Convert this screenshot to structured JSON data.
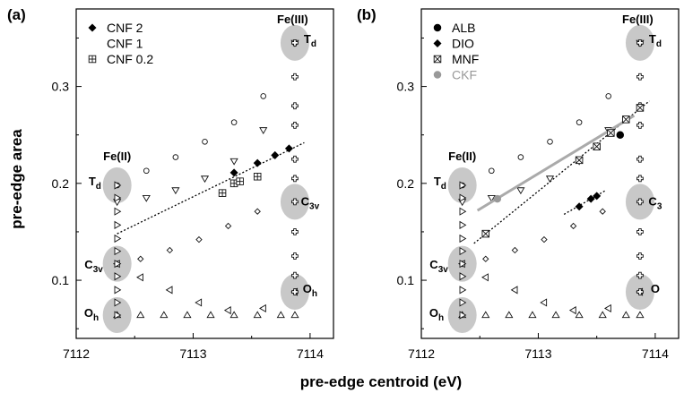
{
  "chart_data": [
    {
      "panel": "(a)",
      "type": "scatter",
      "xlim": [
        7112.0,
        7114.2
      ],
      "ylim": [
        0.04,
        0.38
      ],
      "xticks": [
        7112,
        7113,
        7114
      ],
      "yticks": [
        0.1,
        0.2,
        0.3
      ],
      "legend": [
        {
          "label": "CNF 2",
          "marker": "diamond-filled",
          "color": "#000000"
        },
        {
          "label": "CNF 1",
          "marker": "none",
          "color": "#000000"
        },
        {
          "label": "CNF 0.2",
          "marker": "square-plus",
          "color": "#000000"
        }
      ],
      "legend_position": "top-left",
      "site_labels": [
        {
          "text": "Fe(II)",
          "x": 7112.35,
          "y": 0.224
        },
        {
          "text": "Fe(III)",
          "x": 7113.85,
          "y": 0.365
        }
      ],
      "geometry_labels": [
        {
          "main": "T",
          "sub": "d",
          "x": 7112.16,
          "y": 0.198
        },
        {
          "main": "C",
          "sub": "3v",
          "x": 7112.15,
          "y": 0.112
        },
        {
          "main": "O",
          "sub": "h",
          "x": 7112.13,
          "y": 0.062
        },
        {
          "main": "T",
          "sub": "d",
          "x": 7114.0,
          "y": 0.345
        },
        {
          "main": "C",
          "sub": "3v",
          "x": 7114.0,
          "y": 0.177
        },
        {
          "main": "O",
          "sub": "h",
          "x": 7114.0,
          "y": 0.087
        }
      ],
      "ellipses": [
        {
          "x": 7112.35,
          "y": 0.198
        },
        {
          "x": 7112.35,
          "y": 0.117
        },
        {
          "x": 7112.35,
          "y": 0.064
        },
        {
          "x": 7113.87,
          "y": 0.345
        },
        {
          "x": 7113.87,
          "y": 0.181
        },
        {
          "x": 7113.87,
          "y": 0.088
        }
      ],
      "reference_series": [
        {
          "marker": "circle-open",
          "x": [
            7112.35,
            7112.6,
            7112.85,
            7113.1,
            7113.35,
            7113.6,
            7113.87
          ],
          "y": [
            0.198,
            0.213,
            0.227,
            0.243,
            0.263,
            0.29,
            0.345
          ]
        },
        {
          "marker": "triangle-down-open",
          "x": [
            7112.35,
            7112.6,
            7112.85,
            7113.1,
            7113.35,
            7113.6,
            7113.87
          ],
          "y": [
            0.181,
            0.185,
            0.193,
            0.205,
            0.223,
            0.255,
            0.345
          ]
        },
        {
          "marker": "diamond-open",
          "x": [
            7112.35,
            7112.55,
            7112.8,
            7113.05,
            7113.3,
            7113.55,
            7113.87
          ],
          "y": [
            0.117,
            0.122,
            0.131,
            0.142,
            0.156,
            0.171,
            0.181
          ]
        },
        {
          "marker": "triangle-left-open",
          "x": [
            7112.35,
            7112.55,
            7112.8,
            7113.05,
            7113.3,
            7113.6,
            7113.87
          ],
          "y": [
            0.117,
            0.103,
            0.09,
            0.077,
            0.069,
            0.071,
            0.088
          ]
        },
        {
          "marker": "triangle-up-open",
          "x": [
            7112.35,
            7112.55,
            7112.75,
            7112.95,
            7113.15,
            7113.35,
            7113.55,
            7113.75,
            7113.87
          ],
          "y": [
            0.064,
            0.064,
            0.064,
            0.064,
            0.064,
            0.064,
            0.064,
            0.064,
            0.064
          ]
        },
        {
          "marker": "triangle-right-open",
          "x": [
            7112.35,
            7112.35,
            7112.35,
            7112.35,
            7112.35,
            7112.35,
            7112.35,
            7112.35,
            7112.35,
            7112.35,
            7112.35
          ],
          "y": [
            0.198,
            0.185,
            0.171,
            0.157,
            0.143,
            0.13,
            0.117,
            0.104,
            0.09,
            0.077,
            0.064
          ]
        },
        {
          "marker": "plus-open",
          "x": [
            7113.87,
            7113.87,
            7113.87,
            7113.87,
            7113.87,
            7113.87,
            7113.87,
            7113.87,
            7113.87,
            7113.87,
            7113.87
          ],
          "y": [
            0.345,
            0.31,
            0.28,
            0.26,
            0.225,
            0.205,
            0.181,
            0.15,
            0.125,
            0.105,
            0.088
          ]
        }
      ],
      "series": [
        {
          "name": "CNF 2",
          "marker": "diamond-filled",
          "x": [
            7113.35,
            7113.55,
            7113.7,
            7113.82
          ],
          "y": [
            0.211,
            0.221,
            0.229,
            0.236
          ]
        },
        {
          "name": "CNF 0.2",
          "marker": "square-plus",
          "x": [
            7113.25,
            7113.35,
            7113.4,
            7113.55
          ],
          "y": [
            0.19,
            0.2,
            0.202,
            0.207
          ]
        }
      ],
      "fit_lines": [
        {
          "x": [
            7112.35,
            7113.95
          ],
          "y": [
            0.148,
            0.242
          ],
          "style": "dotted",
          "color": "#000000"
        }
      ]
    },
    {
      "panel": "(b)",
      "type": "scatter",
      "xlim": [
        7112.0,
        7114.2
      ],
      "ylim": [
        0.04,
        0.38
      ],
      "xticks": [
        7112,
        7113,
        7114
      ],
      "yticks": [
        0.1,
        0.2,
        0.3
      ],
      "legend": [
        {
          "label": "ALB",
          "marker": "circle-filled",
          "color": "#000000"
        },
        {
          "label": "DIO",
          "marker": "diamond-filled",
          "color": "#000000"
        },
        {
          "label": "MNF",
          "marker": "square-x",
          "color": "#000000"
        },
        {
          "label": "CKF",
          "marker": "circle-filled",
          "color": "#999999"
        }
      ],
      "legend_position": "top-left",
      "site_labels": [
        {
          "text": "Fe(II)",
          "x": 7112.35,
          "y": 0.224
        },
        {
          "text": "Fe(III)",
          "x": 7113.85,
          "y": 0.365
        }
      ],
      "geometry_labels": [
        {
          "main": "T",
          "sub": "d",
          "x": 7112.16,
          "y": 0.198
        },
        {
          "main": "C",
          "sub": "3v",
          "x": 7112.15,
          "y": 0.112
        },
        {
          "main": "O",
          "sub": "h",
          "x": 7112.13,
          "y": 0.062
        },
        {
          "main": "T",
          "sub": "d",
          "x": 7114.0,
          "y": 0.345
        },
        {
          "main": "C",
          "sub": "3",
          "x": 7114.0,
          "y": 0.177
        },
        {
          "main": "O",
          "sub": "",
          "x": 7114.0,
          "y": 0.087
        }
      ],
      "ellipses": [
        {
          "x": 7112.35,
          "y": 0.198
        },
        {
          "x": 7112.35,
          "y": 0.117
        },
        {
          "x": 7112.35,
          "y": 0.064
        },
        {
          "x": 7113.87,
          "y": 0.345
        },
        {
          "x": 7113.87,
          "y": 0.181
        },
        {
          "x": 7113.87,
          "y": 0.088
        }
      ],
      "reference_series": [
        {
          "marker": "circle-open",
          "x": [
            7112.35,
            7112.6,
            7112.85,
            7113.1,
            7113.35,
            7113.6,
            7113.87
          ],
          "y": [
            0.198,
            0.213,
            0.227,
            0.243,
            0.263,
            0.29,
            0.345
          ]
        },
        {
          "marker": "triangle-down-open",
          "x": [
            7112.35,
            7112.6,
            7112.85,
            7113.1,
            7113.35,
            7113.6,
            7113.87
          ],
          "y": [
            0.181,
            0.185,
            0.193,
            0.205,
            0.223,
            0.255,
            0.345
          ]
        },
        {
          "marker": "diamond-open",
          "x": [
            7112.35,
            7112.55,
            7112.8,
            7113.05,
            7113.3,
            7113.55,
            7113.87
          ],
          "y": [
            0.117,
            0.122,
            0.131,
            0.142,
            0.156,
            0.171,
            0.181
          ]
        },
        {
          "marker": "triangle-left-open",
          "x": [
            7112.35,
            7112.55,
            7112.8,
            7113.05,
            7113.3,
            7113.6,
            7113.87
          ],
          "y": [
            0.117,
            0.103,
            0.09,
            0.077,
            0.069,
            0.071,
            0.088
          ]
        },
        {
          "marker": "triangle-up-open",
          "x": [
            7112.35,
            7112.55,
            7112.75,
            7112.95,
            7113.15,
            7113.35,
            7113.55,
            7113.75,
            7113.87
          ],
          "y": [
            0.064,
            0.064,
            0.064,
            0.064,
            0.064,
            0.064,
            0.064,
            0.064,
            0.064
          ]
        },
        {
          "marker": "triangle-right-open",
          "x": [
            7112.35,
            7112.35,
            7112.35,
            7112.35,
            7112.35,
            7112.35,
            7112.35,
            7112.35,
            7112.35,
            7112.35,
            7112.35
          ],
          "y": [
            0.198,
            0.185,
            0.171,
            0.157,
            0.143,
            0.13,
            0.117,
            0.104,
            0.09,
            0.077,
            0.064
          ]
        },
        {
          "marker": "plus-open",
          "x": [
            7113.87,
            7113.87,
            7113.87,
            7113.87,
            7113.87,
            7113.87,
            7113.87,
            7113.87,
            7113.87,
            7113.87,
            7113.87
          ],
          "y": [
            0.345,
            0.31,
            0.28,
            0.26,
            0.225,
            0.205,
            0.181,
            0.15,
            0.125,
            0.105,
            0.088
          ]
        }
      ],
      "series": [
        {
          "name": "ALB",
          "marker": "circle-filled",
          "x": [
            7113.7
          ],
          "y": [
            0.25
          ]
        },
        {
          "name": "DIO",
          "marker": "diamond-filled",
          "x": [
            7113.35,
            7113.45,
            7113.5
          ],
          "y": [
            0.176,
            0.184,
            0.187
          ]
        },
        {
          "name": "MNF",
          "marker": "square-x",
          "x": [
            7112.55,
            7113.35,
            7113.5,
            7113.62,
            7113.75,
            7113.87
          ],
          "y": [
            0.148,
            0.224,
            0.238,
            0.252,
            0.266,
            0.278
          ]
        },
        {
          "name": "CKF",
          "marker": "circle-filled",
          "x": [
            7112.65
          ],
          "y": [
            0.184
          ]
        }
      ],
      "fit_lines": [
        {
          "x": [
            7112.45,
            7113.95
          ],
          "y": [
            0.138,
            0.285
          ],
          "style": "dotted",
          "color": "#000000"
        },
        {
          "x": [
            7112.48,
            7113.82
          ],
          "y": [
            0.172,
            0.27
          ],
          "style": "solid",
          "color": "#aaaaaa"
        },
        {
          "x": [
            7113.22,
            7113.58
          ],
          "y": [
            0.168,
            0.193
          ],
          "style": "dotted",
          "color": "#000000"
        }
      ]
    }
  ],
  "axes_text": {
    "ylabel": "pre-edge area",
    "xlabel": "pre-edge centroid (eV)"
  }
}
